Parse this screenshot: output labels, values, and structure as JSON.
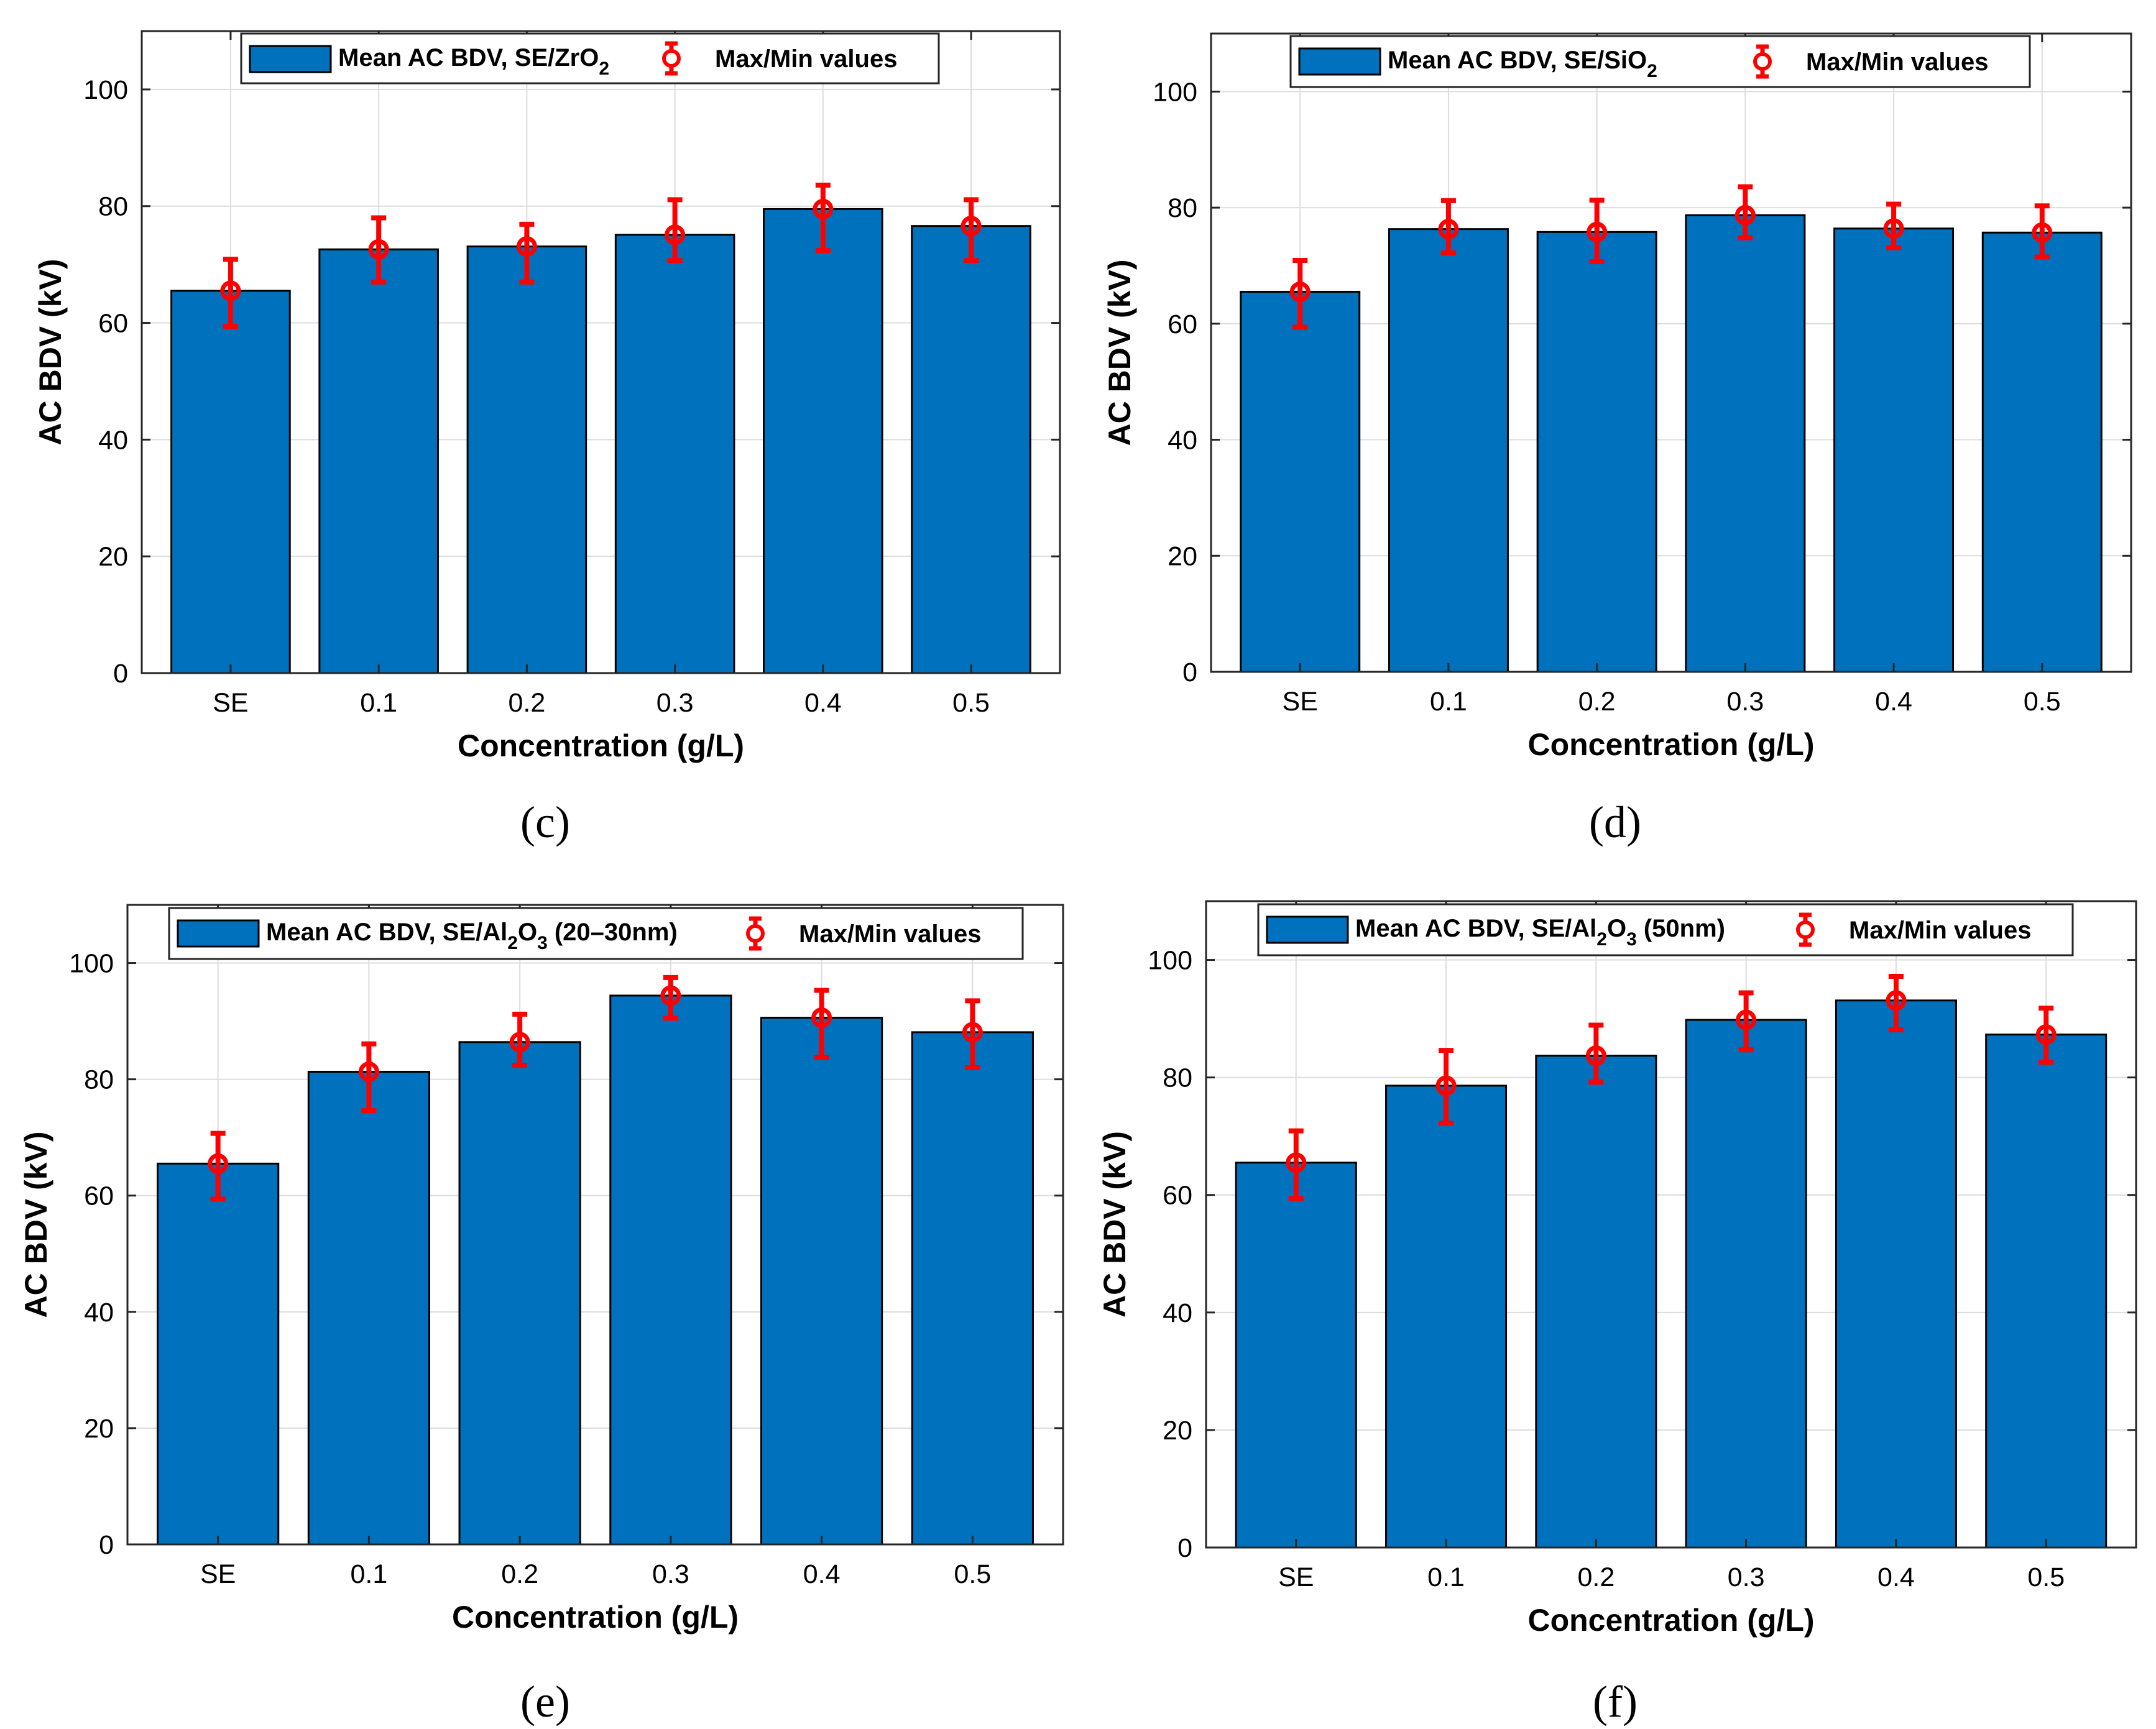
{
  "colors": {
    "bar": "#0072BD",
    "error": "#FF0000",
    "grid": "#DCDCDC",
    "axis": "#262626"
  },
  "chart_data": [
    {
      "type": "bar",
      "panel_label": "(c)",
      "categories": [
        "SE",
        "0.1",
        "0.2",
        "0.3",
        "0.4",
        "0.5"
      ],
      "series": [
        {
          "name": "Mean AC BDV, SE/ZrO",
          "name_subscript": "2",
          "values": [
            65.5,
            72.6,
            73.1,
            75.1,
            79.5,
            76.6
          ]
        }
      ],
      "error_series": {
        "name": "Max/Min values",
        "max": [
          70.9,
          78.0,
          76.9,
          81.1,
          83.6,
          81.1
        ],
        "min": [
          59.4,
          67.0,
          67.0,
          70.7,
          72.4,
          70.7
        ]
      },
      "xlabel": "Concentration (g/L)",
      "ylabel": "AC BDV (kV)",
      "ylim": [
        0,
        110
      ],
      "yticks": [
        0,
        20,
        40,
        60,
        80,
        100
      ],
      "grid": true,
      "legend_position": "top-center"
    },
    {
      "type": "bar",
      "panel_label": "(d)",
      "categories": [
        "SE",
        "0.1",
        "0.2",
        "0.3",
        "0.4",
        "0.5"
      ],
      "series": [
        {
          "name": "Mean AC BDV, SE/SiO",
          "name_subscript": "2",
          "values": [
            65.5,
            76.3,
            75.8,
            78.7,
            76.4,
            75.7
          ]
        }
      ],
      "error_series": {
        "name": "Max/Min values",
        "max": [
          70.9,
          81.2,
          81.3,
          83.6,
          80.6,
          80.3
        ],
        "min": [
          59.4,
          72.2,
          70.7,
          74.8,
          73.1,
          71.5
        ]
      },
      "xlabel": "Concentration (g/L)",
      "ylabel": "AC BDV (kV)",
      "ylim": [
        0,
        110
      ],
      "yticks": [
        0,
        20,
        40,
        60,
        80,
        100
      ],
      "grid": true,
      "legend_position": "top-center"
    },
    {
      "type": "bar",
      "panel_label": "(e)",
      "categories": [
        "SE",
        "0.1",
        "0.2",
        "0.3",
        "0.4",
        "0.5"
      ],
      "series": [
        {
          "name": "Mean AC BDV, SE/Al",
          "name_subscript": "2",
          "name_mid": "O",
          "name_subscript2": "3",
          "name_suffix": " (20–30nm)",
          "values": [
            65.5,
            81.3,
            86.4,
            94.4,
            90.6,
            88.1
          ]
        }
      ],
      "error_series": {
        "name": "Max/Min values",
        "max": [
          70.7,
          86.1,
          91.2,
          97.5,
          95.3,
          93.5
        ],
        "min": [
          59.4,
          74.6,
          82.4,
          90.5,
          83.8,
          82.0
        ]
      },
      "xlabel": "Concentration (g/L)",
      "ylabel": "AC BDV (kV)",
      "ylim": [
        0,
        110
      ],
      "yticks": [
        0,
        20,
        40,
        60,
        80,
        100
      ],
      "grid": true,
      "legend_position": "top-center"
    },
    {
      "type": "bar",
      "panel_label": "(f)",
      "categories": [
        "SE",
        "0.1",
        "0.2",
        "0.3",
        "0.4",
        "0.5"
      ],
      "series": [
        {
          "name": "Mean AC BDV, SE/Al",
          "name_subscript": "2",
          "name_mid": "O",
          "name_subscript2": "3",
          "name_suffix": " (50nm)",
          "values": [
            65.5,
            78.6,
            83.7,
            89.8,
            93.1,
            87.3
          ]
        }
      ],
      "error_series": {
        "name": "Max/Min values",
        "max": [
          70.9,
          84.6,
          88.9,
          94.4,
          97.2,
          91.8
        ],
        "min": [
          59.4,
          72.2,
          79.2,
          84.7,
          88.1,
          82.6
        ]
      },
      "xlabel": "Concentration (g/L)",
      "ylabel": "AC BDV (kV)",
      "ylim": [
        0,
        110
      ],
      "yticks": [
        0,
        20,
        40,
        60,
        80,
        100
      ],
      "grid": true,
      "legend_position": "top-center"
    }
  ]
}
